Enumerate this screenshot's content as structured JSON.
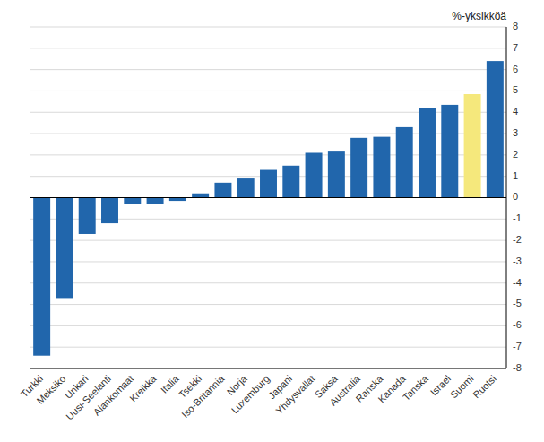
{
  "chart_data": {
    "type": "bar",
    "ylabel": "%-yksikköä",
    "categories": [
      "Turkki",
      "Meksiko",
      "Unkari",
      "Uusi-Seelanti",
      "Alankomaat",
      "Kreikka",
      "Italia",
      "Tsekki",
      "Iso-Britannia",
      "Norja",
      "Luxemburg",
      "Japani",
      "Yhdysvallat",
      "Saksa",
      "Australia",
      "Ranska",
      "Kanada",
      "Tanska",
      "Israel",
      "Suomi",
      "Ruotsi"
    ],
    "values": [
      -7.4,
      -4.7,
      -1.7,
      -1.2,
      -0.3,
      -0.3,
      -0.15,
      0.2,
      0.7,
      0.9,
      1.3,
      1.5,
      2.1,
      2.2,
      2.8,
      2.85,
      3.3,
      4.2,
      4.35,
      4.85,
      6.4
    ],
    "colors": [
      "#2166AC",
      "#2166AC",
      "#2166AC",
      "#2166AC",
      "#2166AC",
      "#2166AC",
      "#2166AC",
      "#2166AC",
      "#2166AC",
      "#2166AC",
      "#2166AC",
      "#2166AC",
      "#2166AC",
      "#2166AC",
      "#2166AC",
      "#2166AC",
      "#2166AC",
      "#2166AC",
      "#2166AC",
      "#F5E87C",
      "#2166AC"
    ],
    "ylim": [
      -8,
      8
    ],
    "yticks": [
      -8,
      -7,
      -6,
      -5,
      -4,
      -3,
      -2,
      -1,
      0,
      1,
      2,
      3,
      4,
      5,
      6,
      7,
      8
    ],
    "grid": true
  }
}
